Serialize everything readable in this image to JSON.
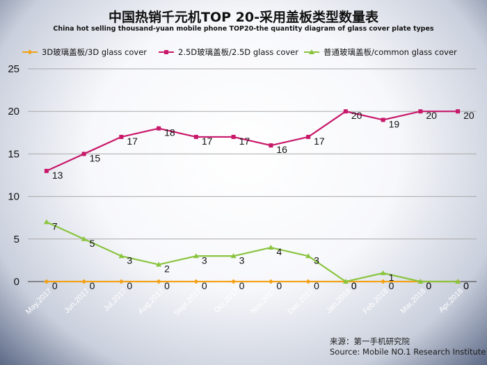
{
  "title": "中国热销千元机TOP 20-采用盖板类型数量表",
  "subtitle": "China hot selling thousand-yuan mobile phone TOP20-the quantity diagram of glass cover plate types",
  "source_line1": "来源：第一手机研究院",
  "source_line2": "Source: Mobile NO.1 Research Institute",
  "chart_data": {
    "type": "line",
    "title": "中国热销千元机TOP 20-采用盖板类型数量表",
    "subtitle": "China hot selling thousand-yuan mobile phone TOP20-the quantity diagram of glass cover plate types",
    "categories": [
      "May,2017",
      "Jun,2017",
      "Jul,2017",
      "Aug,2017",
      "Sept,2017",
      "Oct,2017",
      "Nov,2017",
      "Dec,2017",
      "Jan,2018",
      "Feb,2018",
      "Mar,2018",
      "Apr,2018"
    ],
    "ylim": [
      0,
      25
    ],
    "yticks": [
      0,
      5,
      10,
      15,
      20,
      25
    ],
    "grid": "horizontal",
    "legend_position": "top",
    "series": [
      {
        "name": "3D玻璃盖板/3D glass cover",
        "color": "#f2a218",
        "marker": "diamond",
        "values": [
          0,
          0,
          0,
          0,
          0,
          0,
          0,
          0,
          0,
          0,
          0,
          0
        ]
      },
      {
        "name": "2.5D玻璃盖板/2.5D glass cover",
        "color": "#c8186a",
        "marker": "square",
        "values": [
          13,
          15,
          17,
          18,
          17,
          17,
          16,
          17,
          20,
          19,
          20,
          20
        ]
      },
      {
        "name": "普通玻璃盖板/common glass cover",
        "color": "#8ac43f",
        "marker": "triangle",
        "values": [
          7,
          5,
          3,
          2,
          3,
          3,
          4,
          3,
          0,
          1,
          0,
          0
        ]
      }
    ]
  }
}
